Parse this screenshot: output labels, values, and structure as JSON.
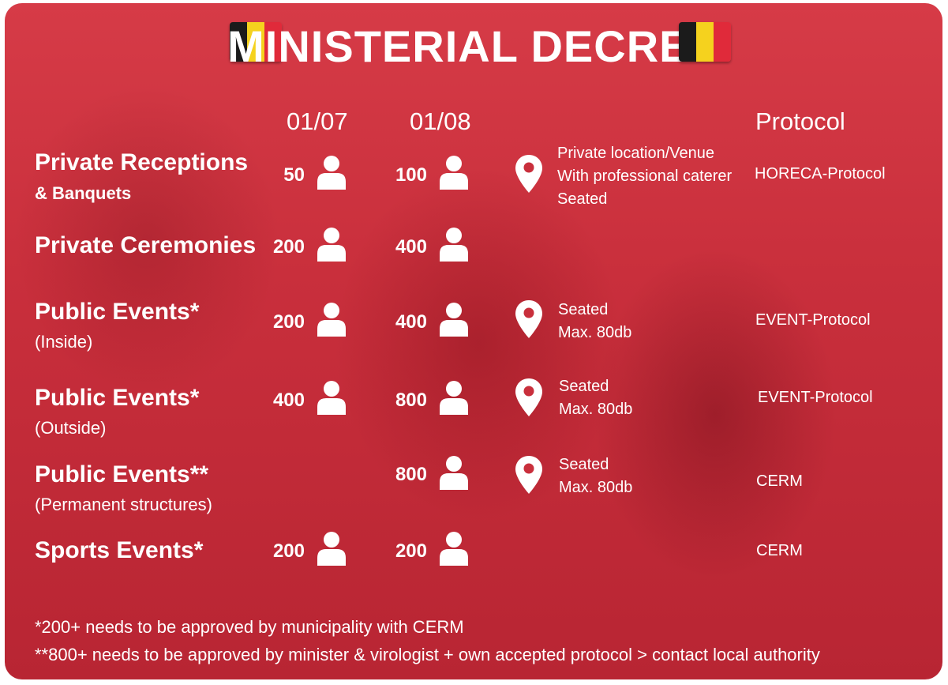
{
  "title": "MINISTERIAL DECREE",
  "flag_colors": [
    "#1b1b1b",
    "#f5d21e",
    "#e02a3a"
  ],
  "columns": {
    "date1": "01/07",
    "date2": "01/08",
    "protocol": "Protocol"
  },
  "icons": {
    "person": "person-icon",
    "location": "location-pin-icon",
    "flag": "belgian-flag-icon"
  },
  "rows": [
    {
      "title": "Private Receptions",
      "subtitle": "& Banquets",
      "v1": "50",
      "v2": "100",
      "notes": [
        "Private location/Venue",
        "With professional caterer",
        "Seated"
      ],
      "protocol": "HORECA-Protocol"
    },
    {
      "title": "Private Ceremonies",
      "subtitle": "",
      "v1": "200",
      "v2": "400",
      "notes": [],
      "protocol": ""
    },
    {
      "title": "Public Events*",
      "subtitle": "(Inside)",
      "v1": "200",
      "v2": "400",
      "notes": [
        "Seated",
        "Max. 80db"
      ],
      "protocol": "EVENT-Protocol"
    },
    {
      "title": "Public Events*",
      "subtitle": "(Outside)",
      "v1": "400",
      "v2": "800",
      "notes": [
        "Seated",
        "Max. 80db"
      ],
      "protocol": "EVENT-Protocol"
    },
    {
      "title": "Public Events**",
      "subtitle": "(Permanent structures)",
      "v1": "",
      "v2": "800",
      "notes": [
        "Seated",
        "Max. 80db"
      ],
      "protocol": "CERM"
    },
    {
      "title": "Sports Events*",
      "subtitle": "",
      "v1": "200",
      "v2": "200",
      "notes": [],
      "protocol": "CERM"
    }
  ],
  "footnotes": [
    "*200+ needs to be approved by municipality with CERM",
    "**800+ needs to be approved by minister & virologist + own accepted  protocol > contact local authority"
  ]
}
